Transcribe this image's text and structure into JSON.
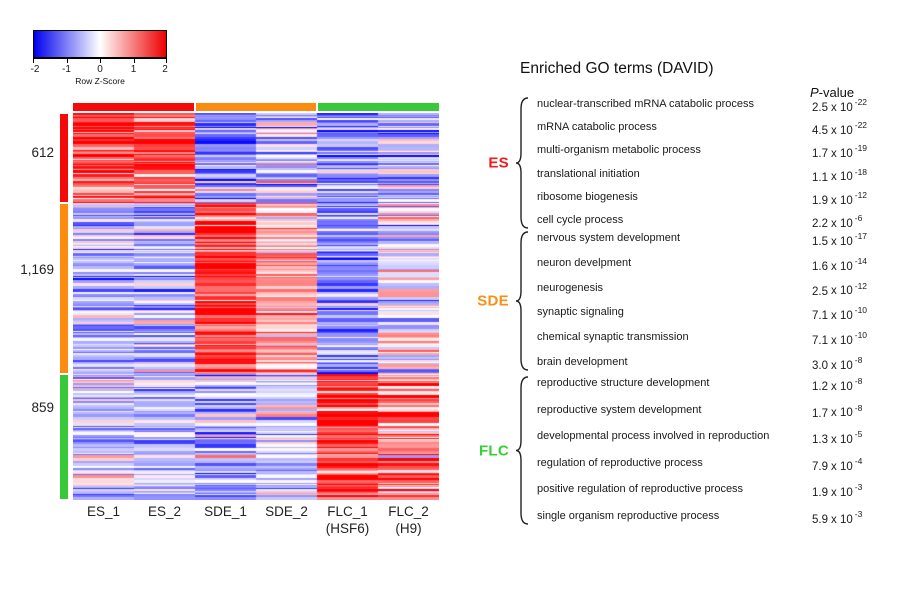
{
  "legend": {
    "label": "Row Z-Score",
    "ticks": [
      "-2",
      "-1",
      "0",
      "1",
      "2"
    ]
  },
  "heatmap": {
    "row_cluster_labels": [
      "612",
      "1,169",
      "859"
    ],
    "column_labels": [
      {
        "line1": "ES_1",
        "line2": ""
      },
      {
        "line1": "ES_2",
        "line2": ""
      },
      {
        "line1": "SDE_1",
        "line2": ""
      },
      {
        "line1": "SDE_2",
        "line2": ""
      },
      {
        "line1": "FLC_1",
        "line2": "(HSF6)"
      },
      {
        "line1": "FLC_2",
        "line2": "(H9)"
      }
    ]
  },
  "chart_data": {
    "type": "heatmap",
    "colorscale": {
      "label": "Row Z-Score",
      "domain": [
        -2,
        0,
        2
      ],
      "colors": [
        "#0000ee",
        "#ffffff",
        "#ee0000"
      ]
    },
    "zlim": [
      -2,
      2
    ],
    "columns": [
      "ES_1",
      "ES_2",
      "SDE_1",
      "SDE_2",
      "FLC_1 (HSF6)",
      "FLC_2 (H9)"
    ],
    "column_groups": [
      {
        "name": "ES",
        "color": "#f60909",
        "columns": [
          "ES_1",
          "ES_2"
        ]
      },
      {
        "name": "SDE",
        "color": "#fb8c10",
        "columns": [
          "SDE_1",
          "SDE_2"
        ]
      },
      {
        "name": "FLC",
        "color": "#38c838",
        "columns": [
          "FLC_1 (HSF6)",
          "FLC_2 (H9)"
        ]
      }
    ],
    "row_clusters": [
      {
        "name": "ES",
        "gene_count": 612,
        "display_count": "612",
        "color": "#f60909",
        "mean_z": [
          1.25,
          1.25,
          -0.85,
          -0.3,
          -0.85,
          -0.65
        ],
        "std_z": [
          0.5,
          0.5,
          0.5,
          0.5,
          0.4,
          0.45
        ]
      },
      {
        "name": "SDE",
        "gene_count": 1169,
        "display_count": "1,169",
        "color": "#fb8c10",
        "mean_z": [
          -0.55,
          -0.55,
          1.5,
          0.55,
          -0.8,
          -0.05
        ],
        "std_z": [
          0.35,
          0.35,
          0.55,
          0.45,
          0.4,
          0.55
        ]
      },
      {
        "name": "FLC",
        "gene_count": 859,
        "display_count": "859",
        "color": "#38c838",
        "mean_z": [
          -0.45,
          -0.5,
          -0.75,
          -0.35,
          1.6,
          1.05
        ],
        "std_z": [
          0.4,
          0.3,
          0.55,
          0.35,
          0.45,
          0.65
        ]
      }
    ]
  },
  "go_panel": {
    "title": "Enriched GO terms (DAVID)",
    "pvalue_header_italic": "P",
    "pvalue_header_rest": "-value",
    "multiplier": "x 10",
    "groups": [
      {
        "name": "ES",
        "color": "#ee1c1c",
        "terms": [
          {
            "term": "nuclear-transcribed mRNA catabolic process",
            "mantissa": "2.5",
            "exponent": "-22"
          },
          {
            "term": "mRNA catabolic process",
            "mantissa": "4.5",
            "exponent": "-22"
          },
          {
            "term": "multi-organism metabolic process",
            "mantissa": "1.7",
            "exponent": "-19"
          },
          {
            "term": "translational initiation",
            "mantissa": "1.1",
            "exponent": "-18"
          },
          {
            "term": "ribosome biogenesis",
            "mantissa": "1.9",
            "exponent": "-12"
          },
          {
            "term": "cell cycle process",
            "mantissa": "2.2",
            "exponent": "-6"
          }
        ]
      },
      {
        "name": "SDE",
        "color": "#f88f16",
        "terms": [
          {
            "term": "nervous system development",
            "mantissa": "1.5",
            "exponent": "-17"
          },
          {
            "term": "neuron develpment",
            "mantissa": "1.6",
            "exponent": "-14"
          },
          {
            "term": "neurogenesis",
            "mantissa": "2.5",
            "exponent": "-12"
          },
          {
            "term": "synaptic signaling",
            "mantissa": "7.1",
            "exponent": "-10"
          },
          {
            "term": "chemical synaptic transmission",
            "mantissa": "7.1",
            "exponent": "-10"
          },
          {
            "term": "brain development",
            "mantissa": "3.0",
            "exponent": "-8"
          }
        ]
      },
      {
        "name": "FLC",
        "color": "#35d035",
        "terms": [
          {
            "term": "reproductive structure development",
            "mantissa": "1.2",
            "exponent": "-8"
          },
          {
            "term": "reproductive system development",
            "mantissa": "1.7",
            "exponent": "-8"
          },
          {
            "term": "developmental process involved in reproduction",
            "mantissa": "1.3",
            "exponent": "-5"
          },
          {
            "term": "regulation of reproductive process",
            "mantissa": "7.9",
            "exponent": "-4"
          },
          {
            "term": "positive regulation of reproductive process",
            "mantissa": "1.9",
            "exponent": "-3"
          },
          {
            "term": "single organism reproductive process",
            "mantissa": "5.9",
            "exponent": "-3"
          }
        ]
      }
    ]
  }
}
